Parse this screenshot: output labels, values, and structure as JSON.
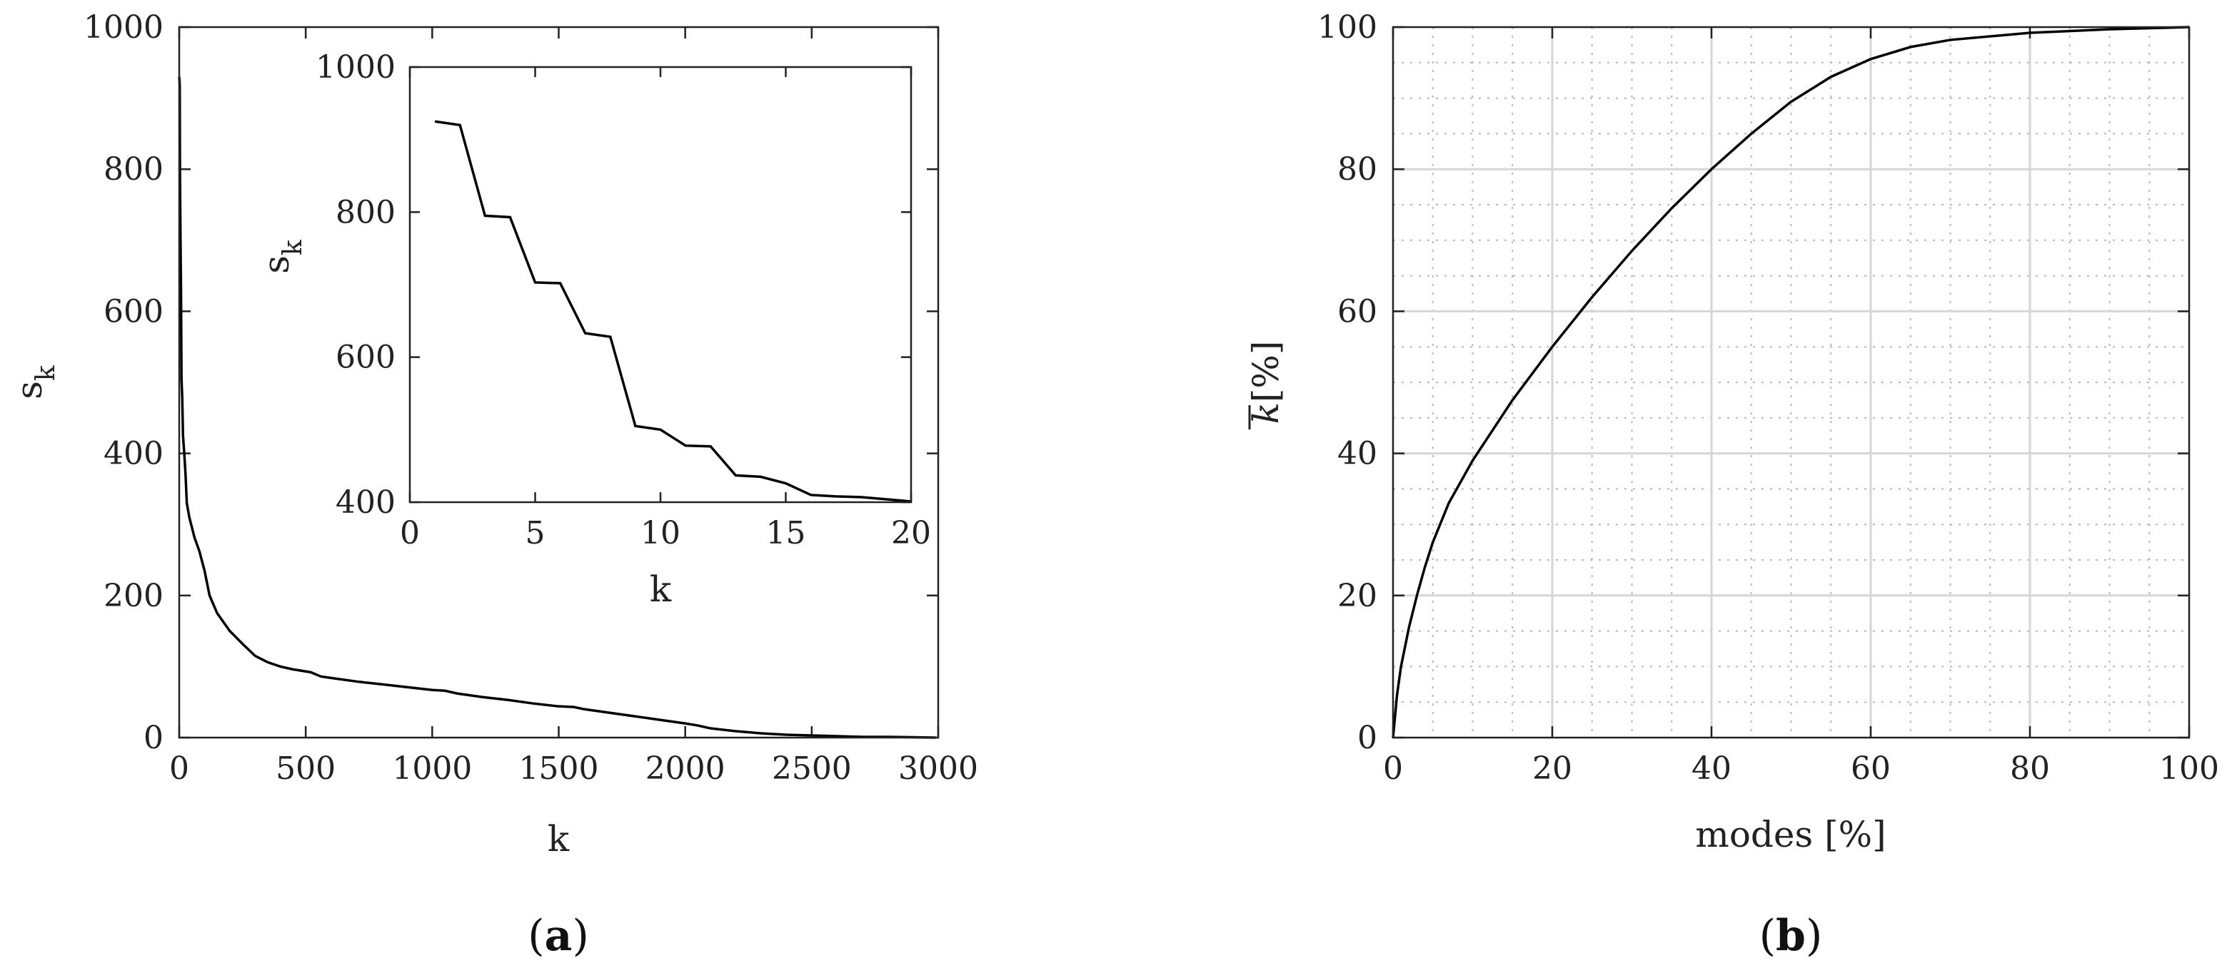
{
  "chart_data": [
    {
      "id": "a",
      "type": "line",
      "panel_label": "a",
      "xlabel": "k",
      "ylabel_base": "s",
      "ylabel_sub": "k",
      "xlim": [
        0,
        3000
      ],
      "ylim": [
        0,
        1000
      ],
      "xticks": [
        0,
        500,
        1000,
        1500,
        2000,
        2500,
        3000
      ],
      "yticks": [
        0,
        200,
        400,
        600,
        800,
        1000
      ],
      "grid": false,
      "series": [
        {
          "points": [
            [
              0,
              930
            ],
            [
              1,
              925
            ],
            [
              2,
              918
            ],
            [
              3,
              795
            ],
            [
              5,
              703
            ],
            [
              7,
              633
            ],
            [
              9,
              505
            ],
            [
              12,
              478
            ],
            [
              15,
              425
            ],
            [
              20,
              400
            ],
            [
              25,
              370
            ],
            [
              30,
              330
            ],
            [
              40,
              310
            ],
            [
              60,
              282
            ],
            [
              80,
              262
            ],
            [
              100,
              235
            ],
            [
              120,
              200
            ],
            [
              150,
              175
            ],
            [
              200,
              150
            ],
            [
              250,
              132
            ],
            [
              300,
              115
            ],
            [
              350,
              106
            ],
            [
              400,
              100
            ],
            [
              450,
              96
            ],
            [
              520,
              92
            ],
            [
              560,
              86
            ],
            [
              600,
              84
            ],
            [
              700,
              79
            ],
            [
              800,
              75
            ],
            [
              900,
              71
            ],
            [
              1000,
              67
            ],
            [
              1050,
              66
            ],
            [
              1100,
              62
            ],
            [
              1200,
              57
            ],
            [
              1300,
              53
            ],
            [
              1400,
              48
            ],
            [
              1500,
              44
            ],
            [
              1560,
              43
            ],
            [
              1600,
              40
            ],
            [
              1700,
              35
            ],
            [
              1800,
              30
            ],
            [
              1900,
              25
            ],
            [
              2000,
              20
            ],
            [
              2050,
              17
            ],
            [
              2100,
              13
            ],
            [
              2200,
              9
            ],
            [
              2300,
              6
            ],
            [
              2400,
              4
            ],
            [
              2500,
              3
            ],
            [
              2600,
              2
            ],
            [
              2700,
              1
            ],
            [
              2800,
              1
            ],
            [
              2900,
              0.5
            ],
            [
              2990,
              0
            ]
          ]
        }
      ],
      "inset": {
        "xlabel": "k",
        "ylabel_base": "s",
        "ylabel_sub": "k",
        "xlim": [
          0,
          20
        ],
        "ylim": [
          400,
          1000
        ],
        "xticks": [
          0,
          5,
          10,
          15,
          20
        ],
        "yticks": [
          400,
          600,
          800,
          1000
        ],
        "points": [
          [
            1,
            925
          ],
          [
            2,
            920
          ],
          [
            3,
            795
          ],
          [
            4,
            793
          ],
          [
            5,
            703
          ],
          [
            6,
            702
          ],
          [
            7,
            633
          ],
          [
            8,
            628
          ],
          [
            9,
            505
          ],
          [
            10,
            500
          ],
          [
            11,
            478
          ],
          [
            12,
            477
          ],
          [
            13,
            437
          ],
          [
            14,
            435
          ],
          [
            15,
            426
          ],
          [
            16,
            410
          ],
          [
            17,
            408
          ],
          [
            18,
            407
          ],
          [
            19,
            404
          ],
          [
            20,
            401
          ]
        ]
      }
    },
    {
      "id": "b",
      "type": "line",
      "panel_label": "b",
      "xlabel": "modes [%]",
      "ylabel_base": "k",
      "ylabel_rest": "[%]",
      "xlim": [
        0,
        100
      ],
      "ylim": [
        0,
        100
      ],
      "xticks": [
        0,
        20,
        40,
        60,
        80,
        100
      ],
      "yticks": [
        0,
        20,
        40,
        60,
        80,
        100
      ],
      "grid": true,
      "minor_grid": true,
      "series": [
        {
          "points": [
            [
              0,
              0
            ],
            [
              0.5,
              6
            ],
            [
              1,
              10
            ],
            [
              2,
              15.5
            ],
            [
              3,
              20
            ],
            [
              4,
              24
            ],
            [
              5,
              27.5
            ],
            [
              7,
              33
            ],
            [
              10,
              39
            ],
            [
              15,
              47.5
            ],
            [
              20,
              55
            ],
            [
              25,
              62
            ],
            [
              30,
              68.5
            ],
            [
              35,
              74.5
            ],
            [
              40,
              80
            ],
            [
              45,
              85
            ],
            [
              50,
              89.5
            ],
            [
              55,
              93
            ],
            [
              60,
              95.5
            ],
            [
              65,
              97.2
            ],
            [
              70,
              98.2
            ],
            [
              80,
              99.2
            ],
            [
              90,
              99.7
            ],
            [
              100,
              100
            ]
          ]
        }
      ]
    }
  ],
  "colors": {
    "line": "#000000",
    "axes": "#222222",
    "major_grid": "#d6d6d6",
    "minor_grid": "#b8b8b8"
  }
}
